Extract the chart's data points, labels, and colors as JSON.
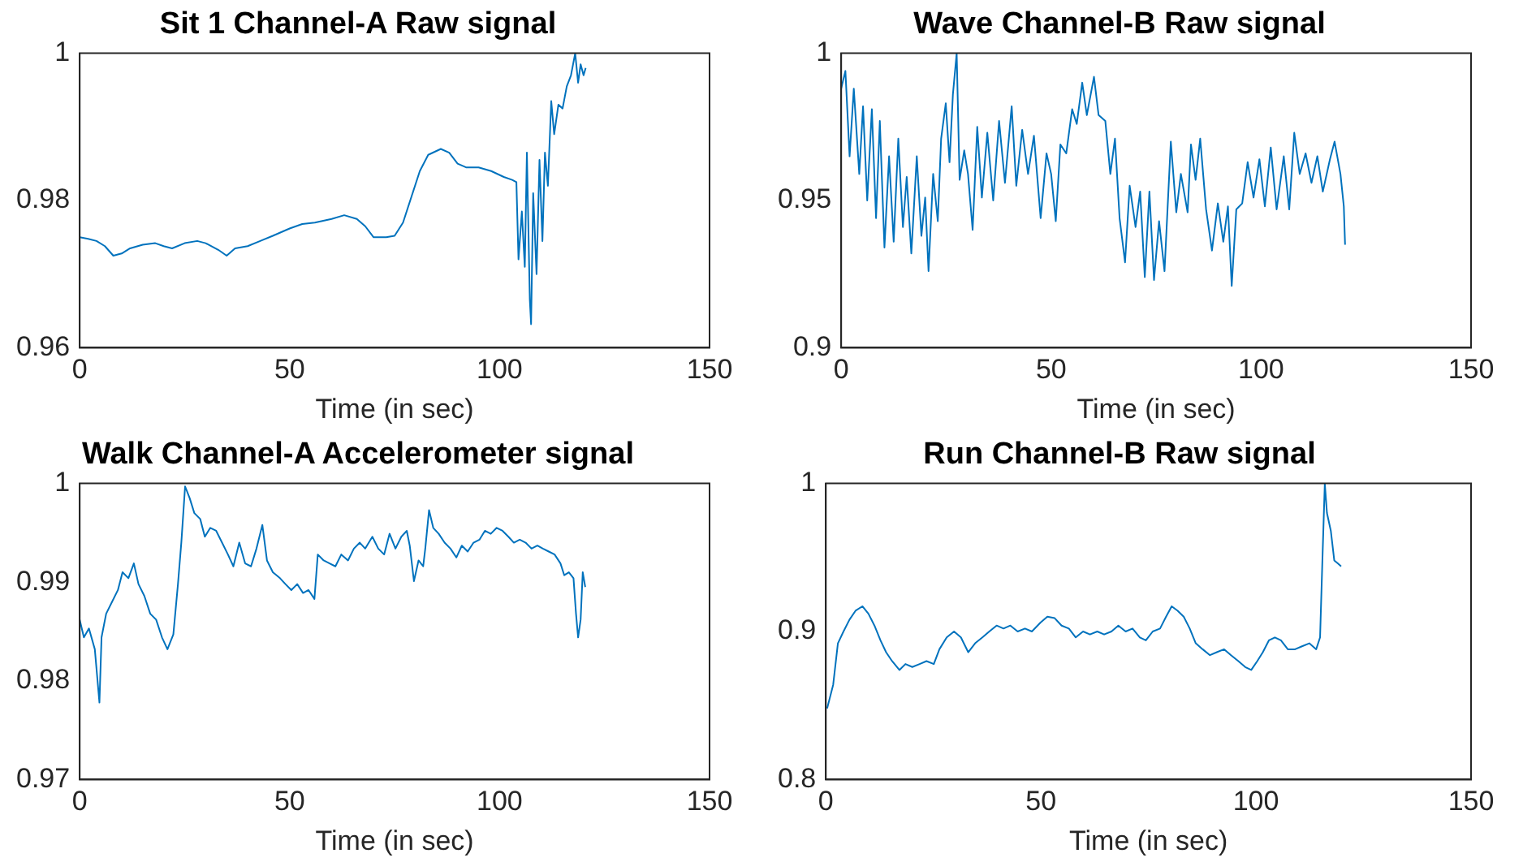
{
  "chart_data": [
    {
      "type": "line",
      "title": "Sit 1 Channel-A Raw signal",
      "xlabel": "Time (in sec)",
      "color": "#0072bd",
      "marker": "none",
      "xlim": [
        0,
        150
      ],
      "xticks": [
        0,
        50,
        100,
        150
      ],
      "ylim": [
        0.96,
        1
      ],
      "yticks": [
        0.96,
        0.98,
        1
      ],
      "x": [
        0,
        2,
        4,
        6,
        8,
        10,
        12,
        15,
        18,
        20,
        22,
        25,
        28,
        30,
        33,
        35,
        37,
        40,
        43,
        46,
        50,
        53,
        56,
        60,
        63,
        66,
        68,
        70,
        73,
        75,
        77,
        79,
        81,
        83,
        86,
        88,
        90,
        92,
        95,
        98,
        101,
        103,
        104,
        104.5,
        105.3,
        106,
        106.5,
        107.2,
        107.5,
        108,
        108.8,
        109.5,
        110.2,
        110.8,
        111.5,
        112.3,
        113,
        114,
        115,
        116,
        117,
        118,
        118.7,
        119.3,
        120,
        120.5
      ],
      "values": [
        0.975,
        0.9748,
        0.9745,
        0.9738,
        0.9725,
        0.9728,
        0.9735,
        0.974,
        0.9742,
        0.9738,
        0.9735,
        0.9742,
        0.9745,
        0.9742,
        0.9733,
        0.9725,
        0.9735,
        0.9738,
        0.9745,
        0.9752,
        0.9762,
        0.9768,
        0.977,
        0.9775,
        0.978,
        0.9775,
        0.9765,
        0.975,
        0.975,
        0.9752,
        0.977,
        0.9805,
        0.984,
        0.9862,
        0.987,
        0.9865,
        0.985,
        0.9845,
        0.9845,
        0.984,
        0.9832,
        0.9828,
        0.9825,
        0.972,
        0.9785,
        0.971,
        0.9865,
        0.9665,
        0.9632,
        0.981,
        0.97,
        0.9855,
        0.9745,
        0.9865,
        0.982,
        0.9935,
        0.989,
        0.993,
        0.9925,
        0.9955,
        0.997,
        1.0,
        0.996,
        0.9985,
        0.997,
        0.998
      ]
    },
    {
      "type": "line",
      "title": "Wave Channel-B Raw signal",
      "xlabel": "Time (in sec)",
      "color": "#0072bd",
      "marker": "none",
      "xlim": [
        0,
        150
      ],
      "xticks": [
        0,
        50,
        100,
        150
      ],
      "ylim": [
        0.9,
        1
      ],
      "yticks": [
        0.9,
        0.95,
        1
      ],
      "x": [
        0,
        1,
        2,
        3,
        4.3,
        5.2,
        6.2,
        7.3,
        8.3,
        9.2,
        10.3,
        11.4,
        12.5,
        13.6,
        14.7,
        15.6,
        16.7,
        18,
        19.1,
        20,
        20.8,
        21.9,
        23,
        23.8,
        24.9,
        25.8,
        26.6,
        27.5,
        28.2,
        29.3,
        30.2,
        31.3,
        32.4,
        33.5,
        34.8,
        36.2,
        37.6,
        39,
        40.6,
        41.7,
        43.1,
        44.5,
        45.9,
        47.5,
        48.9,
        50,
        51.1,
        52.2,
        53.6,
        55,
        56.1,
        57.4,
        58.5,
        60.2,
        61.3,
        62.9,
        64.1,
        65.2,
        66.3,
        67.6,
        68.7,
        70.1,
        71.2,
        72.3,
        73.4,
        74.5,
        75.7,
        77,
        78.5,
        79.8,
        80.9,
        82.5,
        83.3,
        84.4,
        85.5,
        86.9,
        88.3,
        89.7,
        91,
        92.1,
        93,
        94.1,
        95.5,
        96.8,
        98.2,
        99.6,
        100.9,
        102.3,
        103.7,
        105.4,
        106.7,
        107.9,
        109.2,
        110.6,
        112,
        113.4,
        114.7,
        116.4,
        117.5,
        118.9,
        119.7,
        120
      ],
      "values": [
        0.988,
        0.994,
        0.965,
        0.988,
        0.959,
        0.982,
        0.95,
        0.981,
        0.944,
        0.977,
        0.934,
        0.965,
        0.936,
        0.971,
        0.941,
        0.958,
        0.932,
        0.965,
        0.938,
        0.951,
        0.926,
        0.959,
        0.943,
        0.971,
        0.983,
        0.963,
        0.986,
        1.0,
        0.957,
        0.967,
        0.959,
        0.94,
        0.975,
        0.951,
        0.973,
        0.95,
        0.977,
        0.956,
        0.982,
        0.955,
        0.974,
        0.959,
        0.972,
        0.944,
        0.966,
        0.959,
        0.943,
        0.969,
        0.966,
        0.981,
        0.976,
        0.99,
        0.979,
        0.992,
        0.979,
        0.977,
        0.959,
        0.971,
        0.944,
        0.929,
        0.955,
        0.941,
        0.953,
        0.924,
        0.953,
        0.923,
        0.943,
        0.926,
        0.97,
        0.946,
        0.959,
        0.946,
        0.969,
        0.957,
        0.971,
        0.947,
        0.933,
        0.949,
        0.936,
        0.948,
        0.921,
        0.947,
        0.949,
        0.963,
        0.951,
        0.964,
        0.948,
        0.968,
        0.947,
        0.965,
        0.947,
        0.973,
        0.959,
        0.966,
        0.956,
        0.965,
        0.953,
        0.964,
        0.97,
        0.959,
        0.948,
        0.935
      ]
    },
    {
      "type": "line",
      "title": "Walk Channel-A Accelerometer signal",
      "xlabel": "Time (in sec)",
      "color": "#0072bd",
      "marker": "none",
      "xlim": [
        0,
        150
      ],
      "xticks": [
        0,
        50,
        100,
        150
      ],
      "ylim": [
        0.97,
        1
      ],
      "yticks": [
        0.97,
        0.98,
        0.99,
        1
      ],
      "x": [
        0,
        1,
        2.2,
        3.6,
        4.7,
        5.2,
        6.3,
        7.7,
        9.1,
        10.2,
        11.6,
        12.9,
        14,
        15.4,
        16.8,
        18.2,
        19.6,
        20.9,
        22.3,
        23.4,
        24.2,
        25.1,
        26.2,
        27.3,
        28.7,
        29.8,
        31.1,
        32.5,
        33.9,
        35.3,
        36.6,
        38,
        39.4,
        40.8,
        42.1,
        43.5,
        44.6,
        46,
        47.7,
        49,
        50.4,
        51.8,
        53.2,
        54.5,
        55.9,
        56.7,
        58.1,
        59.5,
        60.9,
        62.3,
        63.9,
        65.3,
        66.7,
        68,
        69.7,
        71.1,
        72.5,
        73.8,
        75.2,
        76.6,
        77.9,
        78.6,
        79.6,
        80.7,
        81.8,
        82.3,
        83.2,
        84.2,
        85.5,
        86.9,
        88.3,
        89.7,
        91,
        92.4,
        93.8,
        95.2,
        96.5,
        97.9,
        99.3,
        100.7,
        102.1,
        103.4,
        104.8,
        106.2,
        107.6,
        109,
        110.3,
        111.7,
        113.1,
        114.5,
        115.4,
        116.5,
        117.6,
        118.2,
        118.7,
        119.3,
        119.8,
        120.4
      ],
      "values": [
        0.9862,
        0.9844,
        0.9853,
        0.9832,
        0.9778,
        0.9844,
        0.9868,
        0.988,
        0.9892,
        0.991,
        0.9904,
        0.9919,
        0.9898,
        0.9886,
        0.9868,
        0.9862,
        0.9844,
        0.9832,
        0.9847,
        0.9898,
        0.994,
        0.9997,
        0.9985,
        0.997,
        0.9964,
        0.9946,
        0.9955,
        0.9952,
        0.994,
        0.9928,
        0.9916,
        0.994,
        0.9919,
        0.9916,
        0.9934,
        0.9958,
        0.9922,
        0.991,
        0.9904,
        0.9898,
        0.9892,
        0.9898,
        0.9889,
        0.9892,
        0.9883,
        0.9928,
        0.9922,
        0.9919,
        0.9916,
        0.9928,
        0.9922,
        0.9934,
        0.994,
        0.9934,
        0.9946,
        0.9934,
        0.9928,
        0.9949,
        0.9934,
        0.9946,
        0.9952,
        0.9937,
        0.9901,
        0.9922,
        0.9916,
        0.9934,
        0.9973,
        0.9955,
        0.9949,
        0.994,
        0.9934,
        0.9925,
        0.9937,
        0.9931,
        0.994,
        0.9943,
        0.9952,
        0.9949,
        0.9955,
        0.9952,
        0.9946,
        0.994,
        0.9943,
        0.994,
        0.9934,
        0.9937,
        0.9934,
        0.9931,
        0.9928,
        0.9919,
        0.9907,
        0.991,
        0.9904,
        0.9868,
        0.9844,
        0.9862,
        0.991,
        0.9895
      ]
    },
    {
      "type": "line",
      "title": "Run Channel-B Raw signal",
      "xlabel": "Time (in sec)",
      "color": "#0072bd",
      "marker": "none",
      "xlim": [
        0,
        150
      ],
      "xticks": [
        0,
        50,
        100,
        150
      ],
      "ylim": [
        0.8,
        1
      ],
      "yticks": [
        0.8,
        0.9,
        1
      ],
      "x": [
        0.3,
        1.7,
        2.8,
        4.1,
        5.5,
        6.9,
        8.5,
        9.9,
        11.3,
        12.7,
        14,
        15.4,
        17.1,
        18.5,
        20.1,
        21.8,
        23.4,
        25.1,
        26.4,
        28.1,
        29.8,
        31.4,
        33.1,
        34.7,
        36.4,
        38,
        39.7,
        41.3,
        42.9,
        44.6,
        46.3,
        47.9,
        49.9,
        51.5,
        53.2,
        54.8,
        56.5,
        58.1,
        59.8,
        61.4,
        63.1,
        64.7,
        66.4,
        68,
        69.7,
        71.3,
        73,
        74.4,
        76,
        77.7,
        79.1,
        80.4,
        81.8,
        83.2,
        84.6,
        86,
        87.6,
        89.3,
        90.9,
        92.6,
        94.2,
        95.9,
        97.5,
        98.9,
        100.3,
        101.6,
        103,
        104.4,
        105.8,
        107.4,
        109.1,
        110.7,
        112.4,
        114,
        114.9,
        115.4,
        116,
        116.5,
        117.4,
        118.2,
        119,
        119.8
      ],
      "values": [
        0.848,
        0.864,
        0.892,
        0.9,
        0.908,
        0.914,
        0.917,
        0.912,
        0.904,
        0.894,
        0.886,
        0.88,
        0.874,
        0.878,
        0.876,
        0.878,
        0.88,
        0.878,
        0.888,
        0.896,
        0.9,
        0.896,
        0.886,
        0.892,
        0.896,
        0.9,
        0.904,
        0.902,
        0.904,
        0.9,
        0.902,
        0.9,
        0.906,
        0.91,
        0.909,
        0.904,
        0.902,
        0.896,
        0.9,
        0.898,
        0.9,
        0.898,
        0.9,
        0.904,
        0.9,
        0.902,
        0.896,
        0.894,
        0.9,
        0.902,
        0.91,
        0.917,
        0.914,
        0.91,
        0.902,
        0.892,
        0.888,
        0.884,
        0.886,
        0.888,
        0.884,
        0.88,
        0.876,
        0.874,
        0.88,
        0.886,
        0.894,
        0.896,
        0.894,
        0.888,
        0.888,
        0.89,
        0.892,
        0.888,
        0.896,
        0.944,
        1.0,
        0.98,
        0.968,
        0.948,
        0.946,
        0.944
      ]
    }
  ]
}
